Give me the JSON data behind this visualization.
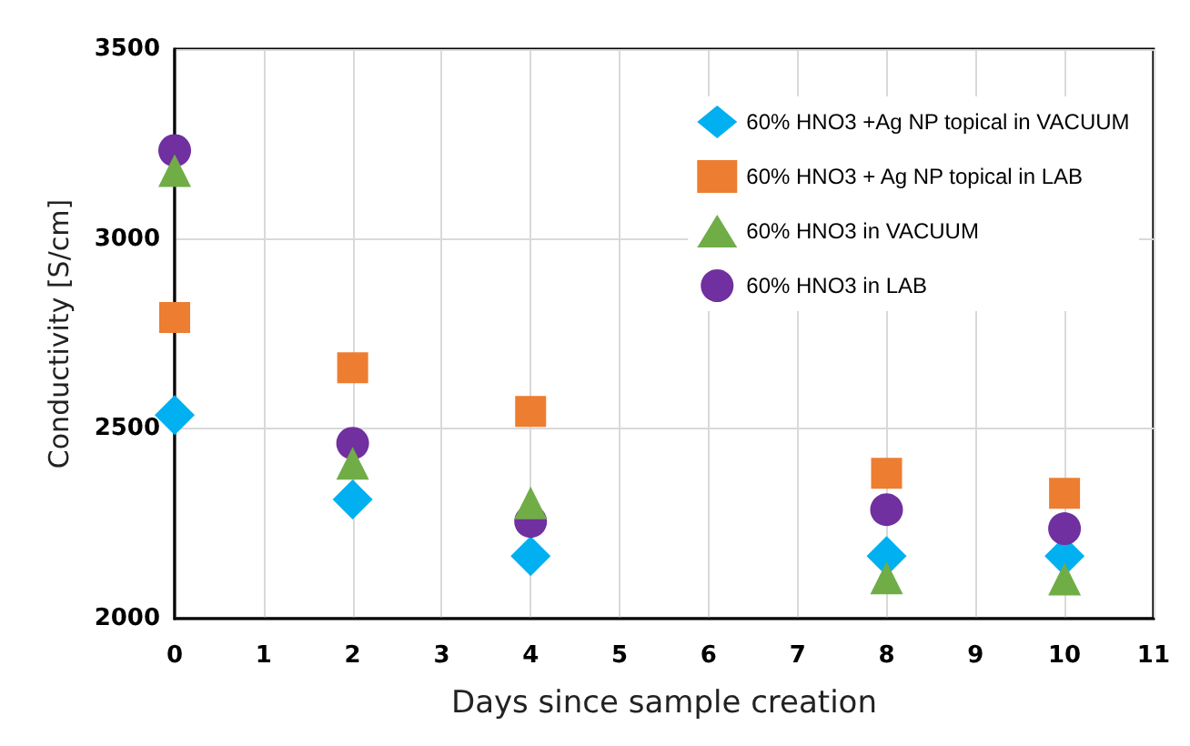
{
  "chart_data": {
    "type": "scatter",
    "xlabel": "Days since sample creation",
    "ylabel": "Conductivity [S/cm]",
    "x": [
      0,
      2,
      4,
      8,
      10
    ],
    "series": [
      {
        "name": "60% HNO3 +Ag NP topical in VACUUM",
        "color": "#00b0f0",
        "marker": "diamond",
        "values": [
          2536,
          2314,
          2165,
          2165,
          2165
        ]
      },
      {
        "name": "60% HNO3 + Ag NP topical in LAB",
        "color": "#ed7d31",
        "marker": "square",
        "values": [
          2793,
          2661,
          2546,
          2383,
          2330
        ]
      },
      {
        "name": "60% HNO3 in VACUUM",
        "color": "#70ad47",
        "marker": "triangle",
        "values": [
          3180,
          2409,
          2305,
          2107,
          2104
        ]
      },
      {
        "name": "60% HNO3 in LAB",
        "color": "#7030a0",
        "marker": "circle",
        "values": [
          3233,
          2462,
          2256,
          2287,
          2237
        ]
      }
    ],
    "xlim": [
      0,
      11
    ],
    "xticks": [
      0,
      1,
      2,
      3,
      4,
      5,
      6,
      7,
      8,
      9,
      10,
      11
    ],
    "ylim": [
      2000,
      3500
    ],
    "yticks": [
      2000,
      2500,
      3000,
      3500
    ],
    "grid": true,
    "legend": "top right"
  }
}
